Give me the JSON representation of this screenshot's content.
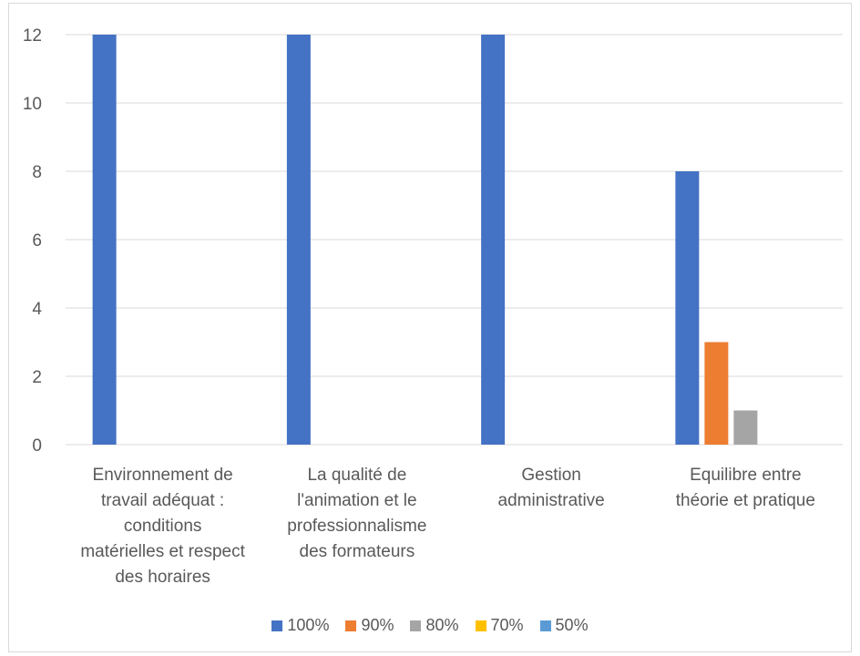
{
  "chart_data": {
    "type": "bar",
    "categories": [
      "Environnement de travail adéquat : conditions matérielles et respect des horaires",
      "La qualité de l'animation et le professionnalisme des formateurs",
      "Gestion administrative",
      "Equilibre entre théorie et pratique"
    ],
    "category_lines": [
      [
        "Environnement de",
        "travail adéquat :",
        "conditions",
        "matérielles et respect",
        "des horaires"
      ],
      [
        "La qualité de",
        "l'animation et le",
        "professionnalisme",
        "des formateurs"
      ],
      [
        "Gestion",
        "administrative"
      ],
      [
        "Equilibre entre",
        "théorie et pratique"
      ]
    ],
    "series": [
      {
        "name": "100%",
        "color": "#4472c4",
        "values": [
          12,
          12,
          12,
          8
        ]
      },
      {
        "name": "90%",
        "color": "#ed7d31",
        "values": [
          0,
          0,
          0,
          3
        ]
      },
      {
        "name": "80%",
        "color": "#a5a5a5",
        "values": [
          0,
          0,
          0,
          1
        ]
      },
      {
        "name": "70%",
        "color": "#ffc000",
        "values": [
          0,
          0,
          0,
          0
        ]
      },
      {
        "name": "50%",
        "color": "#5b9bd5",
        "values": [
          0,
          0,
          0,
          0
        ]
      }
    ],
    "ylim": [
      0,
      12
    ],
    "yticks": [
      0,
      2,
      4,
      6,
      8,
      10,
      12
    ],
    "grid": true,
    "legend_position": "bottom",
    "title": "",
    "xlabel": "",
    "ylabel": ""
  }
}
